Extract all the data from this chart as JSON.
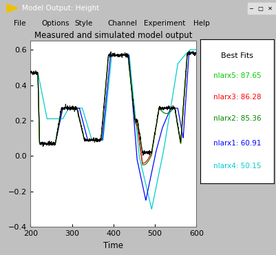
{
  "title": "Measured and simulated model output",
  "xlabel": "Time",
  "xlim": [
    200,
    600
  ],
  "ylim": [
    -0.4,
    0.65
  ],
  "yticks": [
    -0.4,
    -0.2,
    0,
    0.2,
    0.4,
    0.6
  ],
  "xticks": [
    200,
    300,
    400,
    500,
    600
  ],
  "bg_color": "#c0c0c0",
  "ax_bg_color": "#ffffff",
  "legend_title": "Best Fits",
  "legend_entries": [
    {
      "label": "nlarx5: 87.65",
      "color": "#00cc00"
    },
    {
      "label": "nlarx3: 86.28",
      "color": "#ff0000"
    },
    {
      "label": "nlarx2: 85.36",
      "color": "#008800"
    },
    {
      "label": "nlarx1: 60.91",
      "color": "#0000ff"
    },
    {
      "label": "nlarx4: 50.15",
      "color": "#00cccc"
    }
  ],
  "window_title": "Model Output: Height",
  "titlebar_color": "#1a6bc2",
  "titlebar_text_color": "#ffffff",
  "menubar_color": "#f0f0f0",
  "menu_items": [
    "File",
    "Options",
    "Style",
    "Channel",
    "Experiment",
    "Help"
  ],
  "menu_colors": [
    "#000000",
    "#000000",
    "#000000",
    "#000000",
    "#000000",
    "#000000"
  ]
}
